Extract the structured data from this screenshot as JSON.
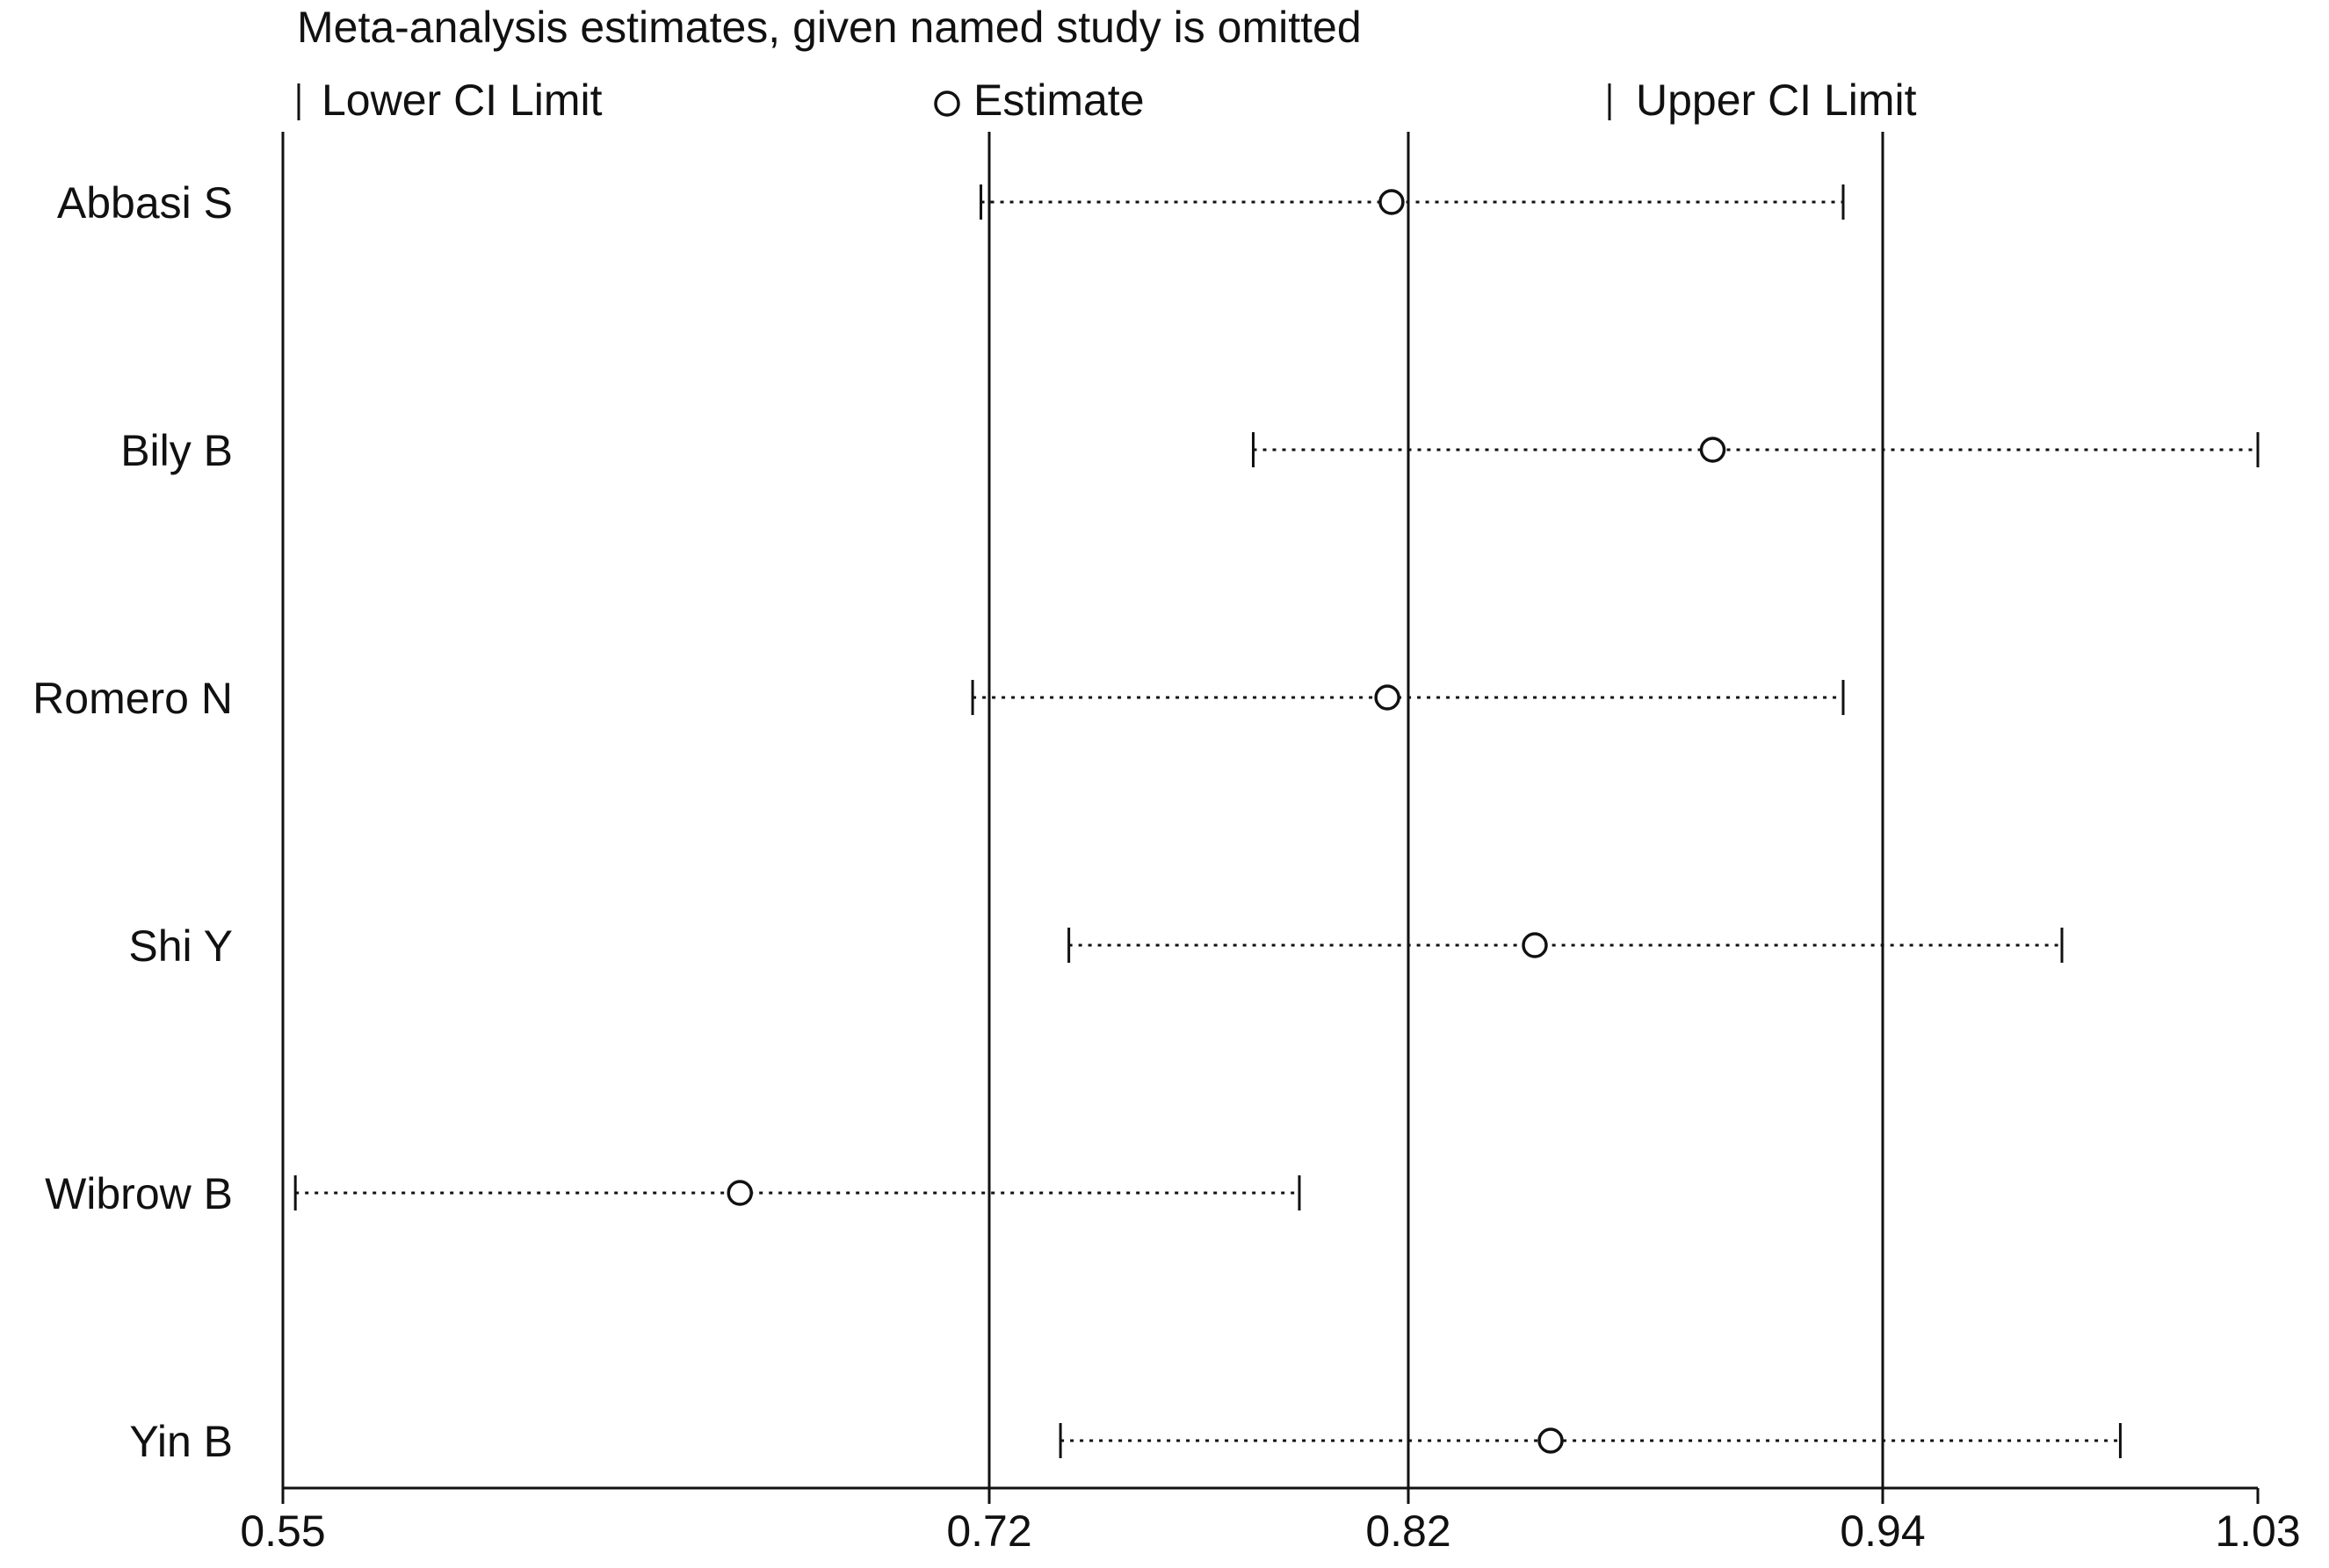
{
  "chart_data": {
    "type": "scatter",
    "subtype": "influence-forest",
    "title": "Meta-analysis estimates, given named study is omitted",
    "legend": {
      "placement": "top",
      "items": [
        {
          "marker": "tick",
          "label": "Lower CI Limit"
        },
        {
          "marker": "circle",
          "label": "Estimate"
        },
        {
          "marker": "tick",
          "label": "Upper CI Limit"
        }
      ]
    },
    "xlim": [
      0.55,
      1.03
    ],
    "xticks": [
      0.55,
      0.72,
      0.82,
      0.94,
      1.03
    ],
    "xtick_labels": [
      "0.55",
      "0.72",
      "0.82",
      "0.94",
      "1.03"
    ],
    "reference_lines": [
      0.72,
      0.82,
      0.94
    ],
    "grid": false,
    "studies": [
      {
        "name": "Abbasi S",
        "lower": 0.718,
        "estimate": 0.816,
        "upper": 0.93
      },
      {
        "name": "Bily B",
        "lower": 0.783,
        "estimate": 0.897,
        "upper": 1.03
      },
      {
        "name": "Romero N",
        "lower": 0.716,
        "estimate": 0.815,
        "upper": 0.93
      },
      {
        "name": "Shi Y",
        "lower": 0.739,
        "estimate": 0.852,
        "upper": 0.983
      },
      {
        "name": "Wibrow B",
        "lower": 0.553,
        "estimate": 0.66,
        "upper": 0.794
      },
      {
        "name": "Yin B",
        "lower": 0.737,
        "estimate": 0.856,
        "upper": 0.997
      }
    ]
  }
}
